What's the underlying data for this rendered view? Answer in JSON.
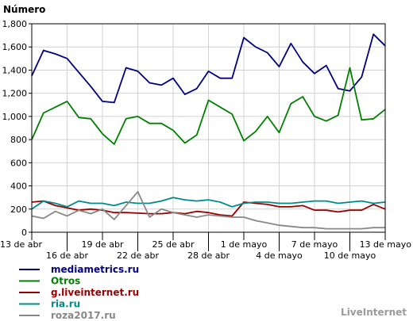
{
  "chart_data": {
    "type": "line",
    "ylabel": "Número",
    "ylim": [
      0,
      1800
    ],
    "yticks": [
      0,
      200,
      400,
      600,
      800,
      1000,
      1200,
      1400,
      1600,
      1800
    ],
    "ytick_labels": [
      "0",
      "200",
      "400",
      "600",
      "800",
      "1,000",
      "1,200",
      "1,400",
      "1,600",
      "1,800"
    ],
    "grid": true,
    "legend_position": "bottom-left",
    "x": [
      "13 abr",
      "14 abr",
      "15 abr",
      "16 abr",
      "17 abr",
      "18 abr",
      "19 abr",
      "20 abr",
      "21 abr",
      "22 abr",
      "23 abr",
      "24 abr",
      "25 abr",
      "26 abr",
      "27 abr",
      "28 abr",
      "29 abr",
      "30 abr",
      "1 mayo",
      "2 mayo",
      "3 mayo",
      "4 mayo",
      "5 mayo",
      "6 mayo",
      "7 mayo",
      "8 mayo",
      "9 mayo",
      "10 mayo",
      "11 mayo",
      "12 mayo",
      "13 mayo"
    ],
    "xtick_labels": [
      {
        "index": 0,
        "label": "13 de abr",
        "row": 1
      },
      {
        "index": 3,
        "label": "16 de abr",
        "row": 2
      },
      {
        "index": 6,
        "label": "19 de abr",
        "row": 1
      },
      {
        "index": 9,
        "label": "22 de abr",
        "row": 2
      },
      {
        "index": 12,
        "label": "25 de abr",
        "row": 1
      },
      {
        "index": 15,
        "label": "28 de abr",
        "row": 2
      },
      {
        "index": 18,
        "label": "1 de mayo",
        "row": 1
      },
      {
        "index": 21,
        "label": "4 de mayo",
        "row": 2
      },
      {
        "index": 24,
        "label": "7 de mayo",
        "row": 1
      },
      {
        "index": 27,
        "label": "10 de mayo",
        "row": 2
      },
      {
        "index": 30,
        "label": "13 de mayo",
        "row": 1
      }
    ],
    "series": [
      {
        "name": "mediametrics.ru",
        "color": "#000080",
        "values": [
          1350,
          1570,
          1540,
          1500,
          1380,
          1260,
          1130,
          1120,
          1420,
          1390,
          1290,
          1270,
          1330,
          1190,
          1240,
          1390,
          1330,
          1330,
          1680,
          1600,
          1550,
          1430,
          1630,
          1470,
          1370,
          1440,
          1240,
          1220,
          1340,
          1710,
          1610
        ]
      },
      {
        "name": "Otros",
        "color": "#008000",
        "values": [
          800,
          1030,
          1080,
          1130,
          990,
          980,
          850,
          760,
          980,
          1000,
          940,
          940,
          880,
          770,
          840,
          1140,
          1080,
          1020,
          790,
          870,
          1000,
          860,
          1110,
          1170,
          1000,
          960,
          1010,
          1420,
          970,
          980,
          1060
        ]
      },
      {
        "name": "g.liveinternet.ru",
        "color": "#990000",
        "values": [
          260,
          270,
          230,
          210,
          190,
          200,
          190,
          170,
          170,
          165,
          160,
          160,
          170,
          160,
          180,
          170,
          150,
          140,
          260,
          250,
          240,
          220,
          220,
          230,
          190,
          190,
          175,
          190,
          190,
          240,
          200
        ]
      },
      {
        "name": "ria.ru",
        "color": "#008B8B",
        "values": [
          200,
          270,
          250,
          220,
          270,
          250,
          250,
          230,
          260,
          250,
          250,
          270,
          300,
          280,
          270,
          280,
          260,
          220,
          250,
          260,
          260,
          250,
          250,
          260,
          270,
          270,
          250,
          260,
          270,
          250,
          260
        ]
      },
      {
        "name": "roza2017.ru",
        "color": "#888888",
        "values": [
          140,
          120,
          180,
          140,
          190,
          160,
          200,
          110,
          230,
          350,
          130,
          200,
          170,
          150,
          130,
          150,
          140,
          130,
          130,
          100,
          80,
          60,
          50,
          40,
          40,
          30,
          30,
          30,
          30,
          40,
          40
        ]
      }
    ]
  },
  "footer": {
    "brand": "LiveInternet"
  }
}
